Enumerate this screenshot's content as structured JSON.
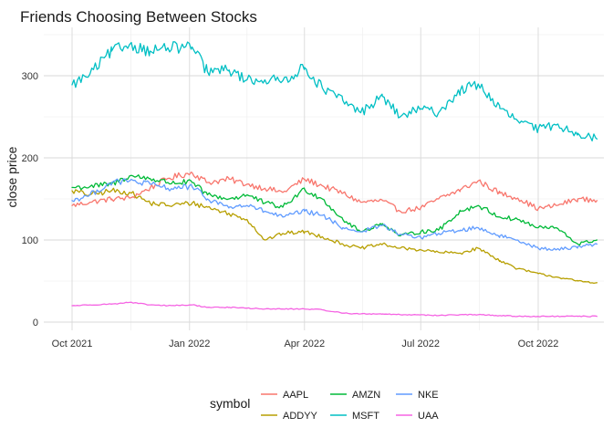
{
  "chart_data": {
    "type": "line",
    "title": "Friends Choosing Between Stocks",
    "xlabel": "",
    "ylabel": "close price",
    "x_range": [
      "2021-10-01",
      "2022-11-16"
    ],
    "x_ticks": [
      {
        "date": "2021-10-01",
        "label": "Oct 2021"
      },
      {
        "date": "2022-01-01",
        "label": "Jan 2022"
      },
      {
        "date": "2022-04-01",
        "label": "Apr 2022"
      },
      {
        "date": "2022-07-01",
        "label": "Jul 2022"
      },
      {
        "date": "2022-10-01",
        "label": "Oct 2022"
      }
    ],
    "ylim": [
      0,
      350
    ],
    "y_ticks": [
      0,
      100,
      200,
      300
    ],
    "grid": true,
    "legend": {
      "title": "symbol",
      "position": "bottom"
    },
    "series": [
      {
        "name": "AAPL",
        "color": "#F8766D",
        "points": [
          [
            "2021-10-01",
            142
          ],
          [
            "2021-10-15",
            146
          ],
          [
            "2021-11-01",
            150
          ],
          [
            "2021-11-15",
            151
          ],
          [
            "2021-12-01",
            163
          ],
          [
            "2021-12-15",
            175
          ],
          [
            "2022-01-03",
            182
          ],
          [
            "2022-01-15",
            170
          ],
          [
            "2022-02-01",
            174
          ],
          [
            "2022-02-15",
            168
          ],
          [
            "2022-03-01",
            163
          ],
          [
            "2022-03-15",
            158
          ],
          [
            "2022-04-01",
            174
          ],
          [
            "2022-04-15",
            166
          ],
          [
            "2022-05-01",
            157
          ],
          [
            "2022-05-15",
            146
          ],
          [
            "2022-06-01",
            148
          ],
          [
            "2022-06-15",
            135
          ],
          [
            "2022-07-01",
            139
          ],
          [
            "2022-07-15",
            150
          ],
          [
            "2022-08-01",
            161
          ],
          [
            "2022-08-15",
            172
          ],
          [
            "2022-09-01",
            157
          ],
          [
            "2022-09-15",
            151
          ],
          [
            "2022-10-01",
            138
          ],
          [
            "2022-10-15",
            142
          ],
          [
            "2022-11-01",
            150
          ],
          [
            "2022-11-16",
            148
          ]
        ]
      },
      {
        "name": "ADDYY",
        "color": "#B79F00",
        "points": [
          [
            "2021-10-01",
            160
          ],
          [
            "2021-10-15",
            155
          ],
          [
            "2021-11-01",
            160
          ],
          [
            "2021-11-15",
            158
          ],
          [
            "2021-12-01",
            145
          ],
          [
            "2021-12-15",
            142
          ],
          [
            "2022-01-03",
            145
          ],
          [
            "2022-01-15",
            140
          ],
          [
            "2022-02-01",
            132
          ],
          [
            "2022-02-15",
            125
          ],
          [
            "2022-03-01",
            100
          ],
          [
            "2022-03-15",
            108
          ],
          [
            "2022-04-01",
            110
          ],
          [
            "2022-04-15",
            104
          ],
          [
            "2022-05-01",
            95
          ],
          [
            "2022-05-15",
            90
          ],
          [
            "2022-06-01",
            95
          ],
          [
            "2022-06-15",
            90
          ],
          [
            "2022-07-01",
            88
          ],
          [
            "2022-07-15",
            85
          ],
          [
            "2022-08-01",
            84
          ],
          [
            "2022-08-15",
            90
          ],
          [
            "2022-09-01",
            75
          ],
          [
            "2022-09-15",
            65
          ],
          [
            "2022-10-01",
            59
          ],
          [
            "2022-10-15",
            55
          ],
          [
            "2022-11-01",
            50
          ],
          [
            "2022-11-16",
            48
          ]
        ]
      },
      {
        "name": "AMZN",
        "color": "#00BA38",
        "points": [
          [
            "2021-10-01",
            164
          ],
          [
            "2021-10-15",
            165
          ],
          [
            "2021-11-01",
            168
          ],
          [
            "2021-11-15",
            178
          ],
          [
            "2021-12-01",
            175
          ],
          [
            "2021-12-15",
            170
          ],
          [
            "2022-01-03",
            170
          ],
          [
            "2022-01-15",
            155
          ],
          [
            "2022-02-01",
            150
          ],
          [
            "2022-02-15",
            155
          ],
          [
            "2022-03-01",
            145
          ],
          [
            "2022-03-15",
            140
          ],
          [
            "2022-04-01",
            162
          ],
          [
            "2022-04-15",
            150
          ],
          [
            "2022-05-01",
            125
          ],
          [
            "2022-05-15",
            110
          ],
          [
            "2022-06-01",
            120
          ],
          [
            "2022-06-15",
            105
          ],
          [
            "2022-07-01",
            110
          ],
          [
            "2022-07-15",
            112
          ],
          [
            "2022-08-01",
            135
          ],
          [
            "2022-08-15",
            142
          ],
          [
            "2022-09-01",
            128
          ],
          [
            "2022-09-15",
            125
          ],
          [
            "2022-10-01",
            115
          ],
          [
            "2022-10-15",
            115
          ],
          [
            "2022-11-01",
            95
          ],
          [
            "2022-11-16",
            100
          ]
        ]
      },
      {
        "name": "MSFT",
        "color": "#00BFC4",
        "points": [
          [
            "2021-10-01",
            289
          ],
          [
            "2021-10-15",
            302
          ],
          [
            "2021-11-01",
            330
          ],
          [
            "2021-11-15",
            338
          ],
          [
            "2021-12-01",
            330
          ],
          [
            "2021-12-15",
            334
          ],
          [
            "2022-01-03",
            335
          ],
          [
            "2022-01-15",
            305
          ],
          [
            "2022-02-01",
            307
          ],
          [
            "2022-02-15",
            295
          ],
          [
            "2022-03-01",
            295
          ],
          [
            "2022-03-15",
            294
          ],
          [
            "2022-04-01",
            310
          ],
          [
            "2022-04-15",
            285
          ],
          [
            "2022-05-01",
            270
          ],
          [
            "2022-05-15",
            255
          ],
          [
            "2022-06-01",
            275
          ],
          [
            "2022-06-15",
            250
          ],
          [
            "2022-07-01",
            260
          ],
          [
            "2022-07-15",
            255
          ],
          [
            "2022-08-01",
            282
          ],
          [
            "2022-08-15",
            290
          ],
          [
            "2022-09-01",
            260
          ],
          [
            "2022-09-15",
            245
          ],
          [
            "2022-10-01",
            235
          ],
          [
            "2022-10-15",
            240
          ],
          [
            "2022-11-01",
            230
          ],
          [
            "2022-11-16",
            223
          ]
        ]
      },
      {
        "name": "NKE",
        "color": "#619CFF",
        "points": [
          [
            "2021-10-01",
            148
          ],
          [
            "2021-10-15",
            155
          ],
          [
            "2021-11-01",
            170
          ],
          [
            "2021-11-15",
            172
          ],
          [
            "2021-12-01",
            168
          ],
          [
            "2021-12-15",
            163
          ],
          [
            "2022-01-03",
            165
          ],
          [
            "2022-01-15",
            150
          ],
          [
            "2022-02-01",
            140
          ],
          [
            "2022-02-15",
            142
          ],
          [
            "2022-03-01",
            135
          ],
          [
            "2022-03-15",
            128
          ],
          [
            "2022-04-01",
            135
          ],
          [
            "2022-04-15",
            130
          ],
          [
            "2022-05-01",
            115
          ],
          [
            "2022-05-15",
            110
          ],
          [
            "2022-06-01",
            118
          ],
          [
            "2022-06-15",
            107
          ],
          [
            "2022-07-01",
            103
          ],
          [
            "2022-07-15",
            108
          ],
          [
            "2022-08-01",
            112
          ],
          [
            "2022-08-15",
            115
          ],
          [
            "2022-09-01",
            105
          ],
          [
            "2022-09-15",
            100
          ],
          [
            "2022-10-01",
            90
          ],
          [
            "2022-10-15",
            88
          ],
          [
            "2022-11-01",
            92
          ],
          [
            "2022-11-16",
            95
          ]
        ]
      },
      {
        "name": "UAA",
        "color": "#F564E3",
        "points": [
          [
            "2021-10-01",
            20
          ],
          [
            "2021-10-15",
            21
          ],
          [
            "2021-11-01",
            22
          ],
          [
            "2021-11-15",
            24
          ],
          [
            "2021-12-01",
            21
          ],
          [
            "2021-12-15",
            20
          ],
          [
            "2022-01-03",
            21
          ],
          [
            "2022-01-15",
            18
          ],
          [
            "2022-02-01",
            18
          ],
          [
            "2022-02-15",
            17
          ],
          [
            "2022-03-01",
            16
          ],
          [
            "2022-03-15",
            16
          ],
          [
            "2022-04-01",
            16
          ],
          [
            "2022-04-15",
            15
          ],
          [
            "2022-05-01",
            11
          ],
          [
            "2022-05-15",
            10
          ],
          [
            "2022-06-01",
            10
          ],
          [
            "2022-06-15",
            9
          ],
          [
            "2022-07-01",
            9
          ],
          [
            "2022-07-15",
            8
          ],
          [
            "2022-08-01",
            9
          ],
          [
            "2022-08-15",
            9
          ],
          [
            "2022-09-01",
            8
          ],
          [
            "2022-09-15",
            7
          ],
          [
            "2022-10-01",
            7
          ],
          [
            "2022-10-15",
            7
          ],
          [
            "2022-11-01",
            7
          ],
          [
            "2022-11-16",
            7
          ]
        ]
      }
    ]
  }
}
